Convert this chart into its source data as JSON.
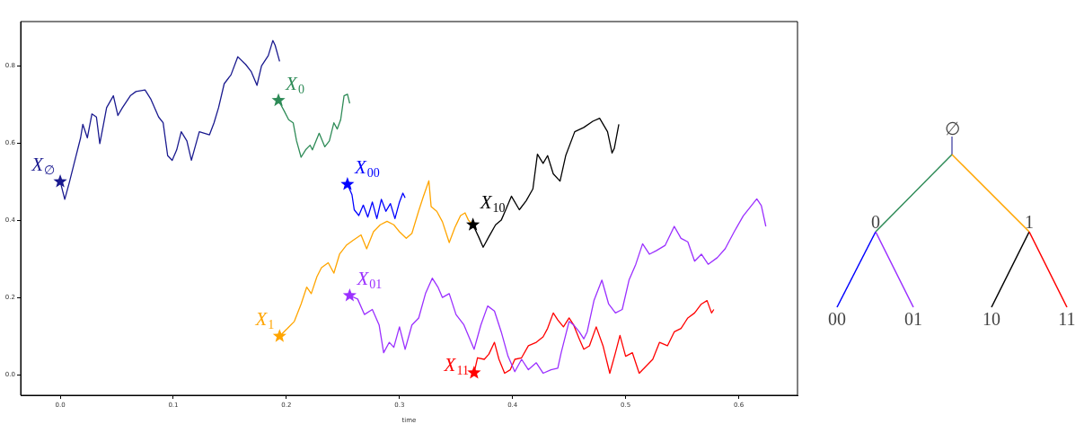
{
  "chart_data": [
    {
      "type": "line",
      "xlabel": "time",
      "xlim": [
        -0.035,
        0.652
      ],
      "ylim": [
        -0.053,
        0.914
      ],
      "xticks": [
        {
          "value": 0,
          "label": "0.0"
        },
        0.1,
        0.2,
        0.3,
        0.4,
        0.5,
        0.6
      ],
      "yticks": [
        {
          "value": 0,
          "label": "0.0"
        },
        0.2,
        0.4,
        0.6,
        0.8
      ],
      "grid": false,
      "legend": false,
      "series": [
        {
          "name": "X$_{∅}$",
          "color": "#1a1a8f",
          "x": [
            0,
            0.004,
            0.008,
            0.013,
            0.018,
            0.02,
            0.024,
            0.028,
            0.032,
            0.035,
            0.038,
            0.041,
            0.047,
            0.051,
            0.055,
            0.062,
            0.067,
            0.075,
            0.08,
            0.087,
            0.091,
            0.095,
            0.099,
            0.103,
            0.107,
            0.112,
            0.116,
            0.123,
            0.132,
            0.136,
            0.14,
            0.145,
            0.151,
            0.157,
            0.164,
            0.169,
            0.174,
            0.178,
            0.184,
            0.188,
            0.19,
            0.194
          ],
          "values": [
            0.5,
            0.454,
            0.497,
            0.555,
            0.613,
            0.648,
            0.613,
            0.675,
            0.667,
            0.598,
            0.644,
            0.691,
            0.722,
            0.671,
            0.691,
            0.722,
            0.733,
            0.737,
            0.714,
            0.667,
            0.652,
            0.567,
            0.555,
            0.582,
            0.629,
            0.605,
            0.555,
            0.629,
            0.621,
            0.652,
            0.691,
            0.753,
            0.776,
            0.823,
            0.803,
            0.784,
            0.749,
            0.799,
            0.826,
            0.865,
            0.853,
            0.811
          ]
        },
        {
          "name": "X$_{0}$",
          "color": "#2e8b57",
          "x": [
            0.193,
            0.198,
            0.202,
            0.206,
            0.209,
            0.213,
            0.217,
            0.221,
            0.223,
            0.229,
            0.234,
            0.238,
            0.242,
            0.245,
            0.248,
            0.251,
            0.254,
            0.256
          ],
          "values": [
            0.71,
            0.683,
            0.66,
            0.652,
            0.605,
            0.563,
            0.582,
            0.594,
            0.582,
            0.625,
            0.59,
            0.605,
            0.652,
            0.636,
            0.66,
            0.722,
            0.726,
            0.702
          ]
        },
        {
          "name": "X$_{1}$",
          "color": "#ffa500",
          "x": [
            0.194,
            0.201,
            0.207,
            0.213,
            0.218,
            0.222,
            0.227,
            0.231,
            0.237,
            0.242,
            0.247,
            0.253,
            0.259,
            0.266,
            0.271,
            0.277,
            0.283,
            0.289,
            0.295,
            0.3,
            0.306,
            0.311,
            0.317,
            0.321,
            0.326,
            0.328,
            0.333,
            0.338,
            0.344,
            0.349,
            0.354,
            0.358,
            0.361,
            0.365
          ],
          "values": [
            0.1,
            0.12,
            0.138,
            0.183,
            0.227,
            0.21,
            0.254,
            0.277,
            0.29,
            0.263,
            0.312,
            0.335,
            0.348,
            0.362,
            0.326,
            0.37,
            0.388,
            0.397,
            0.388,
            0.37,
            0.353,
            0.366,
            0.424,
            0.46,
            0.502,
            0.435,
            0.423,
            0.396,
            0.342,
            0.381,
            0.412,
            0.419,
            0.4,
            0.388
          ]
        },
        {
          "name": "X$_{00}$",
          "color": "#0000ff",
          "x": [
            0.254,
            0.258,
            0.26,
            0.264,
            0.268,
            0.272,
            0.276,
            0.28,
            0.284,
            0.288,
            0.292,
            0.296,
            0.3,
            0.303,
            0.305
          ],
          "values": [
            0.493,
            0.466,
            0.427,
            0.412,
            0.439,
            0.408,
            0.447,
            0.404,
            0.454,
            0.423,
            0.443,
            0.404,
            0.447,
            0.47,
            0.458
          ]
        },
        {
          "name": "X$_{01}$",
          "color": "#9b30ff",
          "x": [
            0.256,
            0.263,
            0.269,
            0.276,
            0.282,
            0.286,
            0.291,
            0.295,
            0.3,
            0.305,
            0.311,
            0.317,
            0.323,
            0.329,
            0.334,
            0.338,
            0.344,
            0.35,
            0.357,
            0.366,
            0.372,
            0.378,
            0.384,
            0.39,
            0.396,
            0.402,
            0.408,
            0.414,
            0.421,
            0.427,
            0.434,
            0.44,
            0.443,
            0.45,
            0.454,
            0.459,
            0.463,
            0.466,
            0.472,
            0.479,
            0.485,
            0.491,
            0.497,
            0.503,
            0.509,
            0.515,
            0.521,
            0.527,
            0.535,
            0.543,
            0.549,
            0.555,
            0.561,
            0.567,
            0.573,
            0.581,
            0.588,
            0.596,
            0.604,
            0.61,
            0.616,
            0.62,
            0.624
          ],
          "values": [
            0.205,
            0.196,
            0.156,
            0.169,
            0.129,
            0.057,
            0.084,
            0.071,
            0.124,
            0.066,
            0.129,
            0.147,
            0.21,
            0.25,
            0.227,
            0.2,
            0.21,
            0.156,
            0.129,
            0.066,
            0.129,
            0.178,
            0.165,
            0.111,
            0.048,
            0.008,
            0.04,
            0.013,
            0.031,
            0.004,
            0.013,
            0.017,
            0.057,
            0.138,
            0.129,
            0.111,
            0.093,
            0.111,
            0.192,
            0.245,
            0.183,
            0.16,
            0.169,
            0.245,
            0.286,
            0.339,
            0.312,
            0.321,
            0.335,
            0.384,
            0.353,
            0.344,
            0.294,
            0.312,
            0.286,
            0.303,
            0.326,
            0.37,
            0.411,
            0.433,
            0.455,
            0.438,
            0.384
          ]
        },
        {
          "name": "X$_{10}$",
          "color": "#000000",
          "x": [
            0.365,
            0.37,
            0.374,
            0.379,
            0.385,
            0.39,
            0.394,
            0.399,
            0.406,
            0.412,
            0.418,
            0.422,
            0.427,
            0.431,
            0.436,
            0.442,
            0.447,
            0.455,
            0.463,
            0.471,
            0.477,
            0.484,
            0.488,
            0.49,
            0.494
          ],
          "values": [
            0.388,
            0.357,
            0.33,
            0.357,
            0.388,
            0.4,
            0.427,
            0.462,
            0.427,
            0.45,
            0.481,
            0.571,
            0.547,
            0.567,
            0.52,
            0.501,
            0.567,
            0.629,
            0.64,
            0.656,
            0.664,
            0.629,
            0.574,
            0.586,
            0.648
          ]
        },
        {
          "name": "X$_{11}$",
          "color": "#ff0000",
          "x": [
            0.366,
            0.369,
            0.375,
            0.379,
            0.384,
            0.388,
            0.393,
            0.398,
            0.402,
            0.408,
            0.414,
            0.421,
            0.427,
            0.431,
            0.436,
            0.44,
            0.445,
            0.45,
            0.454,
            0.459,
            0.463,
            0.468,
            0.474,
            0.48,
            0.486,
            0.491,
            0.495,
            0.5,
            0.506,
            0.512,
            0.518,
            0.524,
            0.53,
            0.537,
            0.543,
            0.549,
            0.555,
            0.561,
            0.567,
            0.572,
            0.576,
            0.578
          ],
          "values": [
            0.005,
            0.044,
            0.04,
            0.053,
            0.084,
            0.04,
            0.004,
            0.013,
            0.04,
            0.044,
            0.075,
            0.084,
            0.098,
            0.12,
            0.16,
            0.142,
            0.124,
            0.147,
            0.129,
            0.093,
            0.066,
            0.075,
            0.124,
            0.075,
            0.004,
            0.057,
            0.102,
            0.048,
            0.057,
            0.004,
            0.022,
            0.04,
            0.084,
            0.075,
            0.111,
            0.12,
            0.147,
            0.16,
            0.183,
            0.192,
            0.16,
            0.169
          ]
        },
        {
          "type": "scatter",
          "marker": "star",
          "color": "#1a1a8f",
          "x": [
            0
          ],
          "values": [
            0.5
          ]
        },
        {
          "type": "scatter",
          "marker": "star",
          "color": "#2e8b57",
          "x": [
            0.193
          ],
          "values": [
            0.71
          ]
        },
        {
          "type": "scatter",
          "marker": "star",
          "color": "#ffa500",
          "x": [
            0.194
          ],
          "values": [
            0.1
          ]
        },
        {
          "type": "scatter",
          "marker": "star",
          "color": "#0000ff",
          "x": [
            0.254
          ],
          "values": [
            0.493
          ]
        },
        {
          "type": "scatter",
          "marker": "star",
          "color": "#9b30ff",
          "x": [
            0.256
          ],
          "values": [
            0.205
          ]
        },
        {
          "type": "scatter",
          "marker": "star",
          "color": "#000000",
          "x": [
            0.365
          ],
          "values": [
            0.388
          ]
        },
        {
          "type": "scatter",
          "marker": "star",
          "color": "#ff0000",
          "x": [
            0.366
          ],
          "values": [
            0.005
          ]
        }
      ]
    },
    {
      "type": "other",
      "annotations": [
        "∅",
        "0",
        "1",
        "00",
        "01",
        "10",
        "11"
      ]
    }
  ]
}
